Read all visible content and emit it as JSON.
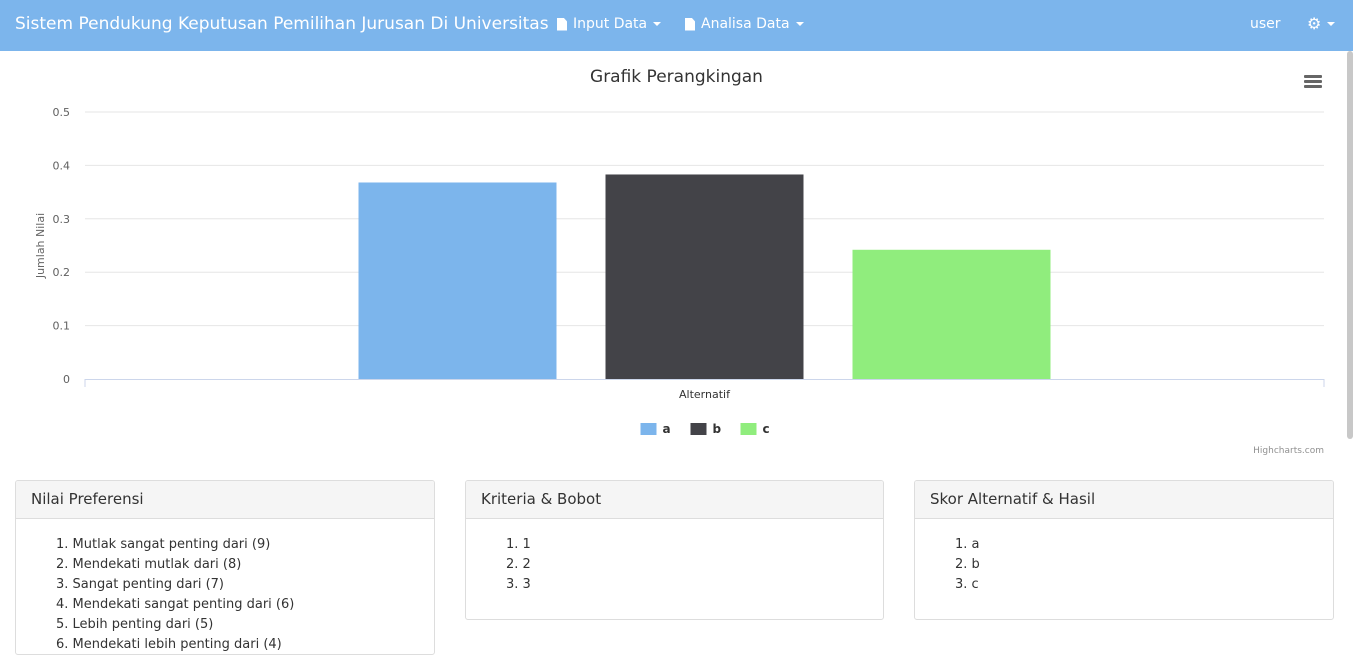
{
  "navbar": {
    "brand": "Sistem Pendukung Keputusan Pemilihan Jurusan Di Universitas",
    "menu": [
      {
        "label": "Input Data",
        "icon": "file-icon"
      },
      {
        "label": "Analisa Data",
        "icon": "file-icon"
      }
    ],
    "user": "user",
    "settings_icon": "gear-icon"
  },
  "chart_data": {
    "type": "bar",
    "title": "Grafik Perangkingan",
    "xlabel": "Alternatif",
    "ylabel": "Jumlah Nilai",
    "categories": [
      "Alternatif"
    ],
    "ylim": [
      0,
      0.5
    ],
    "yticks": [
      "0",
      "0.1",
      "0.2",
      "0.3",
      "0.4",
      "0.5"
    ],
    "grid": true,
    "legend_position": "bottom-center",
    "series": [
      {
        "name": "a",
        "values": [
          0.368
        ],
        "color": "#7cb5ec"
      },
      {
        "name": "b",
        "values": [
          0.383
        ],
        "color": "#434348"
      },
      {
        "name": "c",
        "values": [
          0.242
        ],
        "color": "#90ed7d"
      }
    ],
    "credits": "Highcharts.com"
  },
  "panels": {
    "preferensi": {
      "title": "Nilai Preferensi",
      "items": [
        "1. Mutlak sangat penting dari (9)",
        "2. Mendekati mutlak dari (8)",
        "3. Sangat penting dari (7)",
        "4. Mendekati sangat penting dari (6)",
        "5. Lebih penting dari (5)",
        "6. Mendekati lebih penting dari (4)"
      ]
    },
    "kriteria": {
      "title": "Kriteria & Bobot",
      "items": [
        "1. 1",
        "2. 2",
        "3. 3"
      ]
    },
    "skor": {
      "title": "Skor Alternatif & Hasil",
      "items": [
        "1. a",
        "2. b",
        "3. c"
      ]
    }
  }
}
